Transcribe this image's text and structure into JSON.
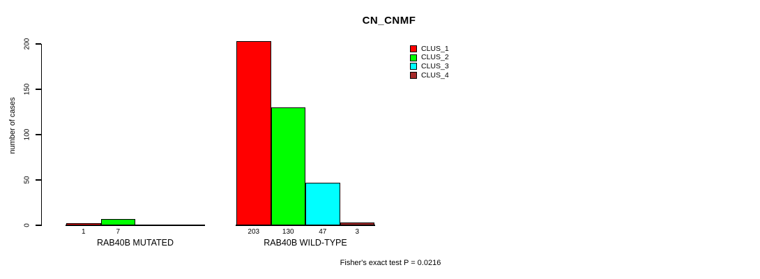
{
  "chart_data": {
    "type": "bar",
    "title": "CN_CNMF",
    "ylabel": "number of cases",
    "xlabel": "",
    "categories": [
      "RAB40B MUTATED",
      "RAB40B WILD-TYPE"
    ],
    "series": [
      {
        "name": "CLUS_1",
        "color": "#FF0000",
        "values": [
          1,
          203
        ]
      },
      {
        "name": "CLUS_2",
        "color": "#00FF00",
        "values": [
          7,
          130
        ]
      },
      {
        "name": "CLUS_3",
        "color": "#00FFFF",
        "values": [
          0,
          47
        ]
      },
      {
        "name": "CLUS_4",
        "color": "#A52A2A",
        "values": [
          0,
          3
        ]
      }
    ],
    "bar_value_labels": [
      [
        "1",
        "7",
        "",
        ""
      ],
      [
        "203",
        "130",
        "47",
        "3"
      ]
    ],
    "yticks": [
      0,
      50,
      100,
      150,
      200
    ],
    "ylim": [
      0,
      207
    ],
    "grid": false,
    "legend_position": "top-right",
    "legend": [
      "CLUS_1",
      "CLUS_2",
      "CLUS_3",
      "CLUS_4"
    ],
    "annotation": "Fisher's exact test P = 0.0216",
    "colors": {
      "background": "#FFFFFF",
      "axis": "#000000",
      "text": "#000000"
    }
  }
}
